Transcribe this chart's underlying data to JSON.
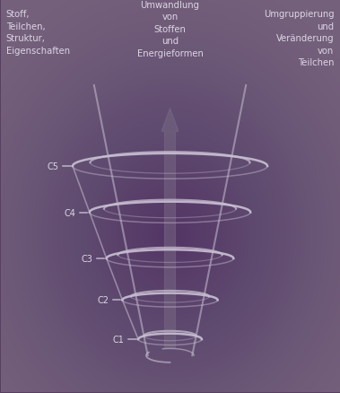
{
  "bg_color": "#584060",
  "spiral_color": "#c8bfd2",
  "spiral_lw": 1.8,
  "levels": [
    "C1",
    "C2",
    "C3",
    "C4",
    "C5"
  ],
  "label_left_top": "Stoff,\nTeilchen,\nStruktur,\nEigenschaften",
  "label_center_top": "Umwandlung\nvon\nStoffen\nund\nEnergieformen",
  "label_right_top": "Umgruppierung\nund\nVeränderung\nvon\nTeilchen",
  "text_color": "#ddd5e5",
  "arrow_color": "#7a6a85",
  "tick_color": "#c8bfd2",
  "font_size_labels": 7.2,
  "font_size_levels": 7.0,
  "xlim": [
    -1.6,
    1.6
  ],
  "ylim": [
    -0.18,
    1.52
  ]
}
